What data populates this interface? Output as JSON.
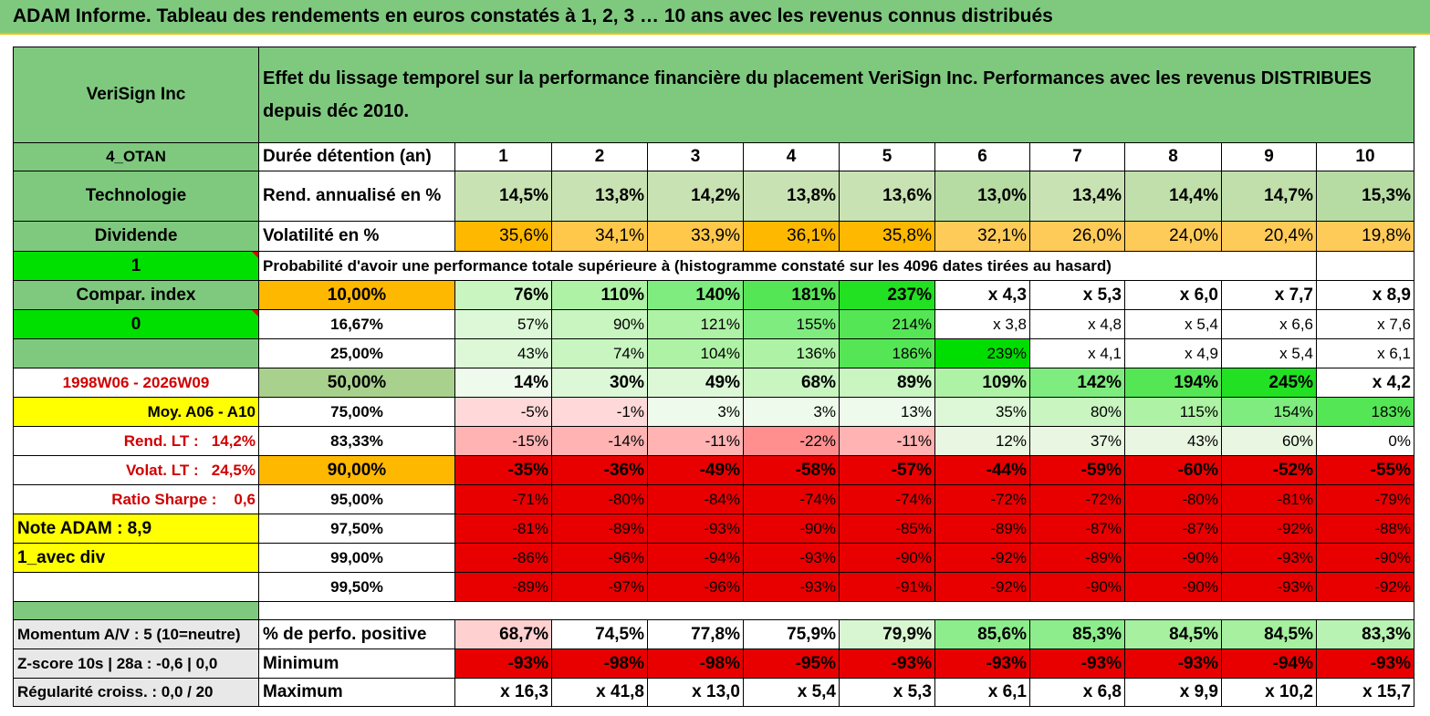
{
  "title": "ADAM Informe. Tableau des rendements en euros constatés à 1, 2, 3 … 10 ans avec les revenus connus distribués",
  "header": {
    "name": "VeriSign Inc",
    "description": "Effet du lissage temporel sur la performance financière du placement VeriSign Inc. Performances avec les revenus DISTRIBUES depuis déc 2010."
  },
  "left": {
    "code": "4_OTAN",
    "sector": "Technologie",
    "type": "Dividende",
    "flag1": "1",
    "compar": "Compar. index",
    "flag0": "0",
    "blank": "",
    "period": "1998W06 - 2026W09",
    "moy": "Moy. A06 - A10",
    "rend_lt_label": "Rend. LT :",
    "rend_lt_value": "14,2%",
    "volat_lt_label": "Volat. LT :",
    "volat_lt_value": "24,5%",
    "sharpe_label": "Ratio Sharpe :",
    "sharpe_value": "0,6",
    "note": "Note ADAM : 8,9",
    "avec_div": "1_avec div",
    "momentum": "Momentum A/V : 5 (10=neutre)",
    "zscore": "Z-score 10s | 28a : -0,6 | 0,0",
    "regularite": "Régularité croiss. : 0,0 / 20"
  },
  "durations_label": "Durée détention (an)",
  "durations": [
    "1",
    "2",
    "3",
    "4",
    "5",
    "6",
    "7",
    "8",
    "9",
    "10"
  ],
  "rend_label": "Rend. annualisé en %",
  "rend": [
    "14,5%",
    "13,8%",
    "14,2%",
    "13,8%",
    "13,6%",
    "13,0%",
    "13,4%",
    "14,4%",
    "14,7%",
    "15,3%"
  ],
  "vol_label": "Volatilité en %",
  "vol": [
    "35,6%",
    "34,1%",
    "33,9%",
    "36,1%",
    "35,8%",
    "32,1%",
    "26,0%",
    "24,0%",
    "20,4%",
    "19,8%"
  ],
  "proba_title": "Probabilité d'avoir une performance totale supérieure à (histogramme constaté sur les 4096 dates tirées au hasard)",
  "quantiles": [
    {
      "p": "10,00%",
      "v": [
        "76%",
        "110%",
        "140%",
        "181%",
        "237%",
        "x 4,3",
        "x 5,3",
        "x 6,0",
        "x 7,7",
        "x 8,9"
      ]
    },
    {
      "p": "16,67%",
      "v": [
        "57%",
        "90%",
        "121%",
        "155%",
        "214%",
        "x 3,8",
        "x 4,8",
        "x 5,4",
        "x 6,6",
        "x 7,6"
      ]
    },
    {
      "p": "25,00%",
      "v": [
        "43%",
        "74%",
        "104%",
        "136%",
        "186%",
        "239%",
        "x 4,1",
        "x 4,9",
        "x 5,4",
        "x 6,1"
      ]
    },
    {
      "p": "50,00%",
      "v": [
        "14%",
        "30%",
        "49%",
        "68%",
        "89%",
        "109%",
        "142%",
        "194%",
        "245%",
        "x 4,2"
      ]
    },
    {
      "p": "75,00%",
      "v": [
        "-5%",
        "-1%",
        "3%",
        "3%",
        "13%",
        "35%",
        "80%",
        "115%",
        "154%",
        "183%"
      ]
    },
    {
      "p": "83,33%",
      "v": [
        "-15%",
        "-14%",
        "-11%",
        "-22%",
        "-11%",
        "12%",
        "37%",
        "43%",
        "60%",
        "0%"
      ]
    },
    {
      "p": "90,00%",
      "v": [
        "-35%",
        "-36%",
        "-49%",
        "-58%",
        "-57%",
        "-44%",
        "-59%",
        "-60%",
        "-52%",
        "-55%"
      ]
    },
    {
      "p": "95,00%",
      "v": [
        "-71%",
        "-80%",
        "-84%",
        "-74%",
        "-74%",
        "-72%",
        "-72%",
        "-80%",
        "-81%",
        "-79%"
      ]
    },
    {
      "p": "97,50%",
      "v": [
        "-81%",
        "-89%",
        "-93%",
        "-90%",
        "-85%",
        "-89%",
        "-87%",
        "-87%",
        "-92%",
        "-88%"
      ]
    },
    {
      "p": "99,00%",
      "v": [
        "-86%",
        "-96%",
        "-94%",
        "-93%",
        "-90%",
        "-92%",
        "-89%",
        "-90%",
        "-93%",
        "-90%"
      ]
    },
    {
      "p": "99,50%",
      "v": [
        "-89%",
        "-97%",
        "-96%",
        "-93%",
        "-91%",
        "-92%",
        "-90%",
        "-90%",
        "-93%",
        "-92%"
      ]
    }
  ],
  "positive_label": "% de perfo. positive",
  "positive": [
    "68,7%",
    "74,5%",
    "77,8%",
    "75,9%",
    "79,9%",
    "85,6%",
    "85,3%",
    "84,5%",
    "84,5%",
    "83,3%"
  ],
  "min_label": "Minimum",
  "min": [
    "-93%",
    "-98%",
    "-98%",
    "-95%",
    "-93%",
    "-93%",
    "-93%",
    "-93%",
    "-94%",
    "-93%"
  ],
  "max_label": "Maximum",
  "max": [
    "x 16,3",
    "x 41,8",
    "x 13,0",
    "x 5,4",
    "x 5,3",
    "x 6,1",
    "x 6,8",
    "x 9,9",
    "x 10,2",
    "x 15,7"
  ],
  "colors": {
    "header_green": "#7fc97f",
    "bright_green": "#00e000",
    "orange": "#ffb800",
    "yellow": "#ffff00",
    "red": "#e80000",
    "light_olive": "#a9d18e"
  }
}
